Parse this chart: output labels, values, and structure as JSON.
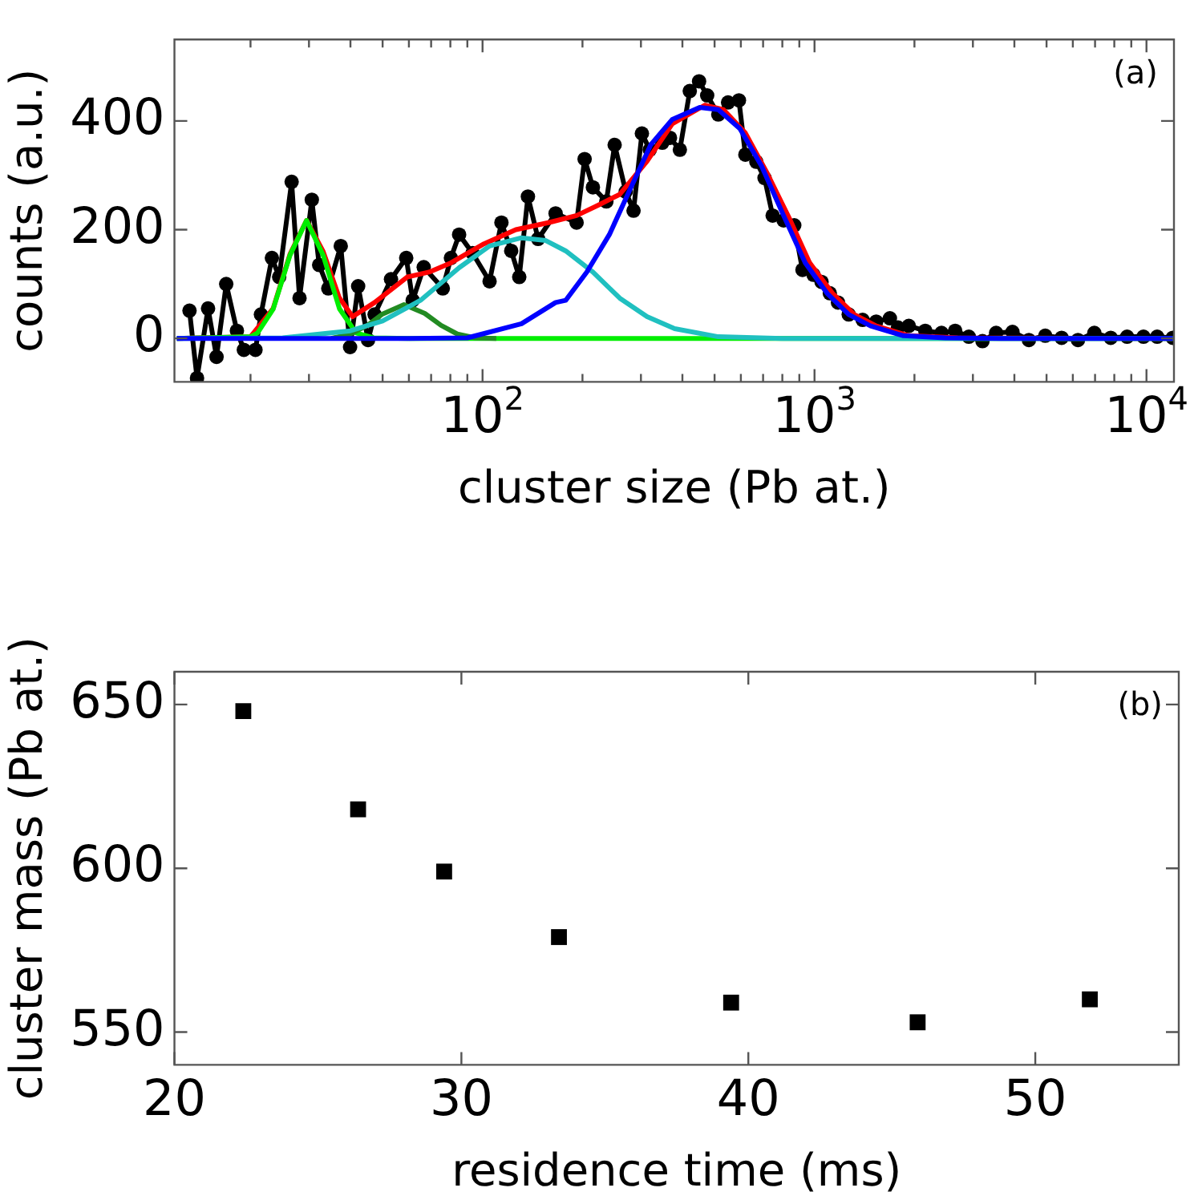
{
  "chart_data": [
    {
      "type": "line",
      "xlabel": "cluster size (Pb at.)",
      "ylabel": "counts (a.u.)",
      "log": "x",
      "grid": false,
      "legend": false,
      "annotations": [
        "(a)"
      ],
      "xlim": [
        11.8,
        12100
      ],
      "ylim": [
        -80,
        550
      ],
      "xticks": [
        {
          "value": 20,
          "label": null
        },
        {
          "value": 30,
          "label": null
        },
        {
          "value": 40,
          "label": null
        },
        {
          "value": 50,
          "label": null
        },
        {
          "value": 60,
          "label": null
        },
        {
          "value": 70,
          "label": null
        },
        {
          "value": 80,
          "label": null
        },
        {
          "value": 90,
          "label": null
        },
        {
          "value": 100,
          "label": "10$^{2}$"
        },
        {
          "value": 200,
          "label": null
        },
        {
          "value": 300,
          "label": null
        },
        {
          "value": 400,
          "label": null
        },
        {
          "value": 500,
          "label": null
        },
        {
          "value": 600,
          "label": null
        },
        {
          "value": 700,
          "label": null
        },
        {
          "value": 800,
          "label": null
        },
        {
          "value": 900,
          "label": null
        },
        {
          "value": 1000,
          "label": "10$^{3}$"
        },
        {
          "value": 2000,
          "label": null
        },
        {
          "value": 3000,
          "label": null
        },
        {
          "value": 4000,
          "label": null
        },
        {
          "value": 5000,
          "label": null
        },
        {
          "value": 6000,
          "label": null
        },
        {
          "value": 7000,
          "label": null
        },
        {
          "value": 8000,
          "label": null
        },
        {
          "value": 9000,
          "label": null
        },
        {
          "value": 10000,
          "label": "10$^{4}$"
        }
      ],
      "yticks": [
        0,
        200,
        400
      ],
      "series": [
        {
          "color": "#000000",
          "marker": "circle",
          "line_style": "solid",
          "x": [
            13.1,
            13.8,
            14.9,
            15.8,
            16.9,
            18.2,
            19.1,
            20.7,
            21.5,
            23.2,
            24.4,
            26.6,
            28.1,
            30.6,
            32.2,
            34.3,
            37.4,
            39.9,
            42.2,
            45.2,
            47.3,
            53,
            58.9,
            61.6,
            66.5,
            75.9,
            80.3,
            85,
            93.3,
            105,
            114,
            122,
            129,
            137,
            147,
            166,
            192,
            203,
            215,
            236,
            250,
            270,
            285,
            302,
            319,
            348,
            367,
            393,
            421,
            449,
            475,
            513,
            549,
            592,
            619,
            668,
            707,
            748,
            807,
            869,
            920,
            993,
            1050,
            1112,
            1177,
            1268,
            1396,
            1534,
            1687,
            1784,
            1923,
            2156,
            2413,
            2653,
            2916,
            3206,
            3524,
            3948,
            4424,
            4955,
            5551,
            6218,
            6966,
            7804,
            8743,
            9794,
            10770,
            12000
          ],
          "values": [
            51,
            -73,
            55,
            -34,
            100,
            14,
            -21,
            -21,
            44,
            148,
            113,
            288,
            74,
            255,
            135,
            92,
            170,
            -16,
            96,
            -3,
            44,
            109,
            148,
            70,
            131,
            92,
            148,
            191,
            157,
            105,
            213,
            161,
            113,
            261,
            183,
            230,
            213,
            330,
            278,
            252,
            356,
            270,
            235,
            377,
            347,
            360,
            369,
            347,
            455,
            473,
            447,
            412,
            434,
            438,
            338,
            325,
            295,
            226,
            217,
            208,
            126,
            117,
            104,
            83,
            66,
            44,
            34,
            31,
            37,
            20,
            23,
            14,
            10,
            14,
            3,
            -5,
            10,
            12,
            -3,
            5,
            1,
            -3,
            10,
            1,
            3,
            3,
            3,
            1
          ]
        },
        {
          "color": "#ff0000",
          "marker": "none",
          "line_style": "solid",
          "x": [
            12,
            20,
            23.4,
            26.3,
            29.5,
            33.1,
            37,
            40.6,
            47.3,
            59.3,
            69,
            80.3,
            101,
            126,
            158,
            192,
            223,
            259,
            313,
            373,
            467,
            531,
            619,
            720,
            838,
            967,
            1133,
            1318,
            1534,
            1923,
            2700,
            12000
          ],
          "values": [
            0,
            3,
            55,
            155,
            217,
            160,
            75,
            40,
            66,
            113,
            122,
            139,
            174,
            200,
            213,
            226,
            245,
            265,
            326,
            395,
            429,
            421,
            378,
            304,
            222,
            139,
            83,
            44,
            23,
            5,
            1,
            0
          ]
        },
        {
          "color": "#00ee00",
          "marker": "none",
          "line_style": "solid",
          "x": [
            12,
            20,
            21,
            23.4,
            26.3,
            29.5,
            33.1,
            37.1,
            41.6,
            47,
            60,
            12000
          ],
          "values": [
            0,
            3,
            10,
            54,
            153,
            217,
            153,
            54,
            10,
            1,
            0,
            0
          ]
        },
        {
          "color": "#228b22",
          "marker": "none",
          "line_style": "solid",
          "x": [
            35,
            40,
            45,
            50,
            58,
            67,
            75,
            84,
            95,
            110
          ],
          "values": [
            0,
            8,
            24,
            45,
            62,
            46,
            24,
            8,
            1,
            0
          ]
        },
        {
          "color": "#20c0c0",
          "marker": "none",
          "line_style": "solid",
          "x": [
            12,
            25,
            40,
            50,
            65,
            85,
            105,
            131,
            155,
            178,
            215,
            259,
            313,
            379,
            513,
            800,
            12000
          ],
          "values": [
            0,
            1,
            14,
            32,
            70,
            130,
            170,
            185,
            180,
            161,
            122,
            74,
            40,
            18,
            3,
            0,
            0
          ]
        },
        {
          "color": "#0000ff",
          "marker": "none",
          "line_style": "solid",
          "x": [
            12,
            60,
            90,
            131,
            166,
            178,
            206,
            241,
            280,
            321,
            373,
            451,
            513,
            596,
            693,
            807,
            938,
            1091,
            1268,
            1476,
            1853,
            2480,
            3656,
            12000
          ],
          "values": [
            0,
            0,
            1,
            27,
            66,
            70,
            122,
            191,
            278,
            356,
            403,
            425,
            421,
            386,
            317,
            226,
            139,
            83,
            44,
            23,
            5,
            1,
            0,
            0
          ]
        }
      ]
    },
    {
      "type": "scatter",
      "xlabel": "residence time (ms)",
      "ylabel": "cluster mass (Pb at.)",
      "grid": false,
      "legend": false,
      "marker": "square",
      "annotations": [
        "(b)"
      ],
      "xlim": [
        20,
        55
      ],
      "ylim": [
        540,
        660
      ],
      "xticks": [
        20,
        30,
        40,
        50
      ],
      "yticks": [
        550,
        600,
        650
      ],
      "x": [
        22.4,
        26.4,
        29.4,
        33.4,
        39.4,
        45.9,
        51.9
      ],
      "values": [
        648,
        618,
        599,
        579,
        559,
        553,
        560
      ],
      "color": "#000000"
    }
  ]
}
